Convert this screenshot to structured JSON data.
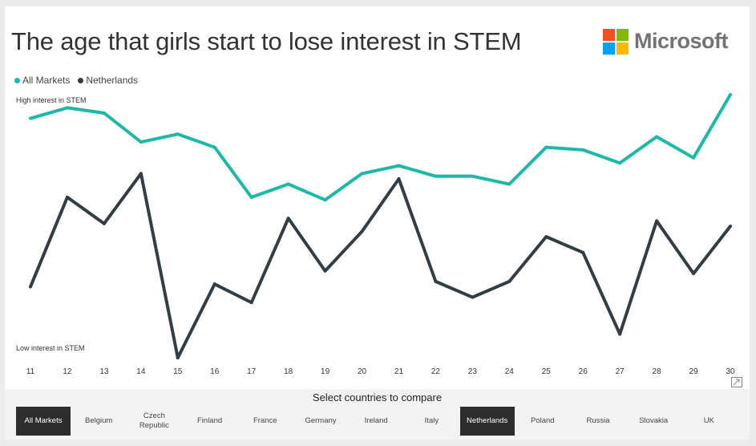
{
  "title": "The age that girls start to lose interest in STEM",
  "logo": {
    "text": "Microsoft",
    "colors": [
      "#f25022",
      "#7fba00",
      "#00a4ef",
      "#ffb900"
    ]
  },
  "legend": [
    {
      "label": "All Markets",
      "color": "#1cb8a8"
    },
    {
      "label": "Netherlands",
      "color": "#333e44"
    }
  ],
  "axis_notes": {
    "high": "High interest in STEM",
    "low": "Low interest in STEM"
  },
  "chart_data": {
    "type": "line",
    "x": [
      11,
      12,
      13,
      14,
      15,
      16,
      17,
      18,
      19,
      20,
      21,
      22,
      23,
      24,
      25,
      26,
      27,
      28,
      29,
      30
    ],
    "series": [
      {
        "name": "All Markets",
        "color": "#1cb8a8",
        "values": [
          0.91,
          0.95,
          0.93,
          0.82,
          0.85,
          0.8,
          0.61,
          0.66,
          0.6,
          0.7,
          0.73,
          0.69,
          0.69,
          0.66,
          0.8,
          0.79,
          0.74,
          0.84,
          0.76,
          1.0
        ]
      },
      {
        "name": "Netherlands",
        "color": "#333e44",
        "values": [
          0.27,
          0.61,
          0.51,
          0.7,
          0.0,
          0.28,
          0.21,
          0.53,
          0.33,
          0.48,
          0.68,
          0.29,
          0.23,
          0.29,
          0.46,
          0.4,
          0.09,
          0.52,
          0.32,
          0.5
        ]
      }
    ],
    "ylim": [
      0,
      1
    ],
    "y_meaning": "relative interest (0 = low, 1 = high)",
    "legend_position": "top-left",
    "grid": false
  },
  "controls": {
    "label": "Select countries to compare",
    "buttons": [
      {
        "label": "All Markets",
        "selected": true
      },
      {
        "label": "Belgium",
        "selected": false
      },
      {
        "label": "Czech Republic",
        "selected": false
      },
      {
        "label": "Finland",
        "selected": false
      },
      {
        "label": "France",
        "selected": false
      },
      {
        "label": "Germany",
        "selected": false
      },
      {
        "label": "Ireland",
        "selected": false
      },
      {
        "label": "Italy",
        "selected": false
      },
      {
        "label": "Netherlands",
        "selected": true
      },
      {
        "label": "Poland",
        "selected": false
      },
      {
        "label": "Russia",
        "selected": false
      },
      {
        "label": "Slovakia",
        "selected": false
      },
      {
        "label": "UK",
        "selected": false
      }
    ]
  }
}
